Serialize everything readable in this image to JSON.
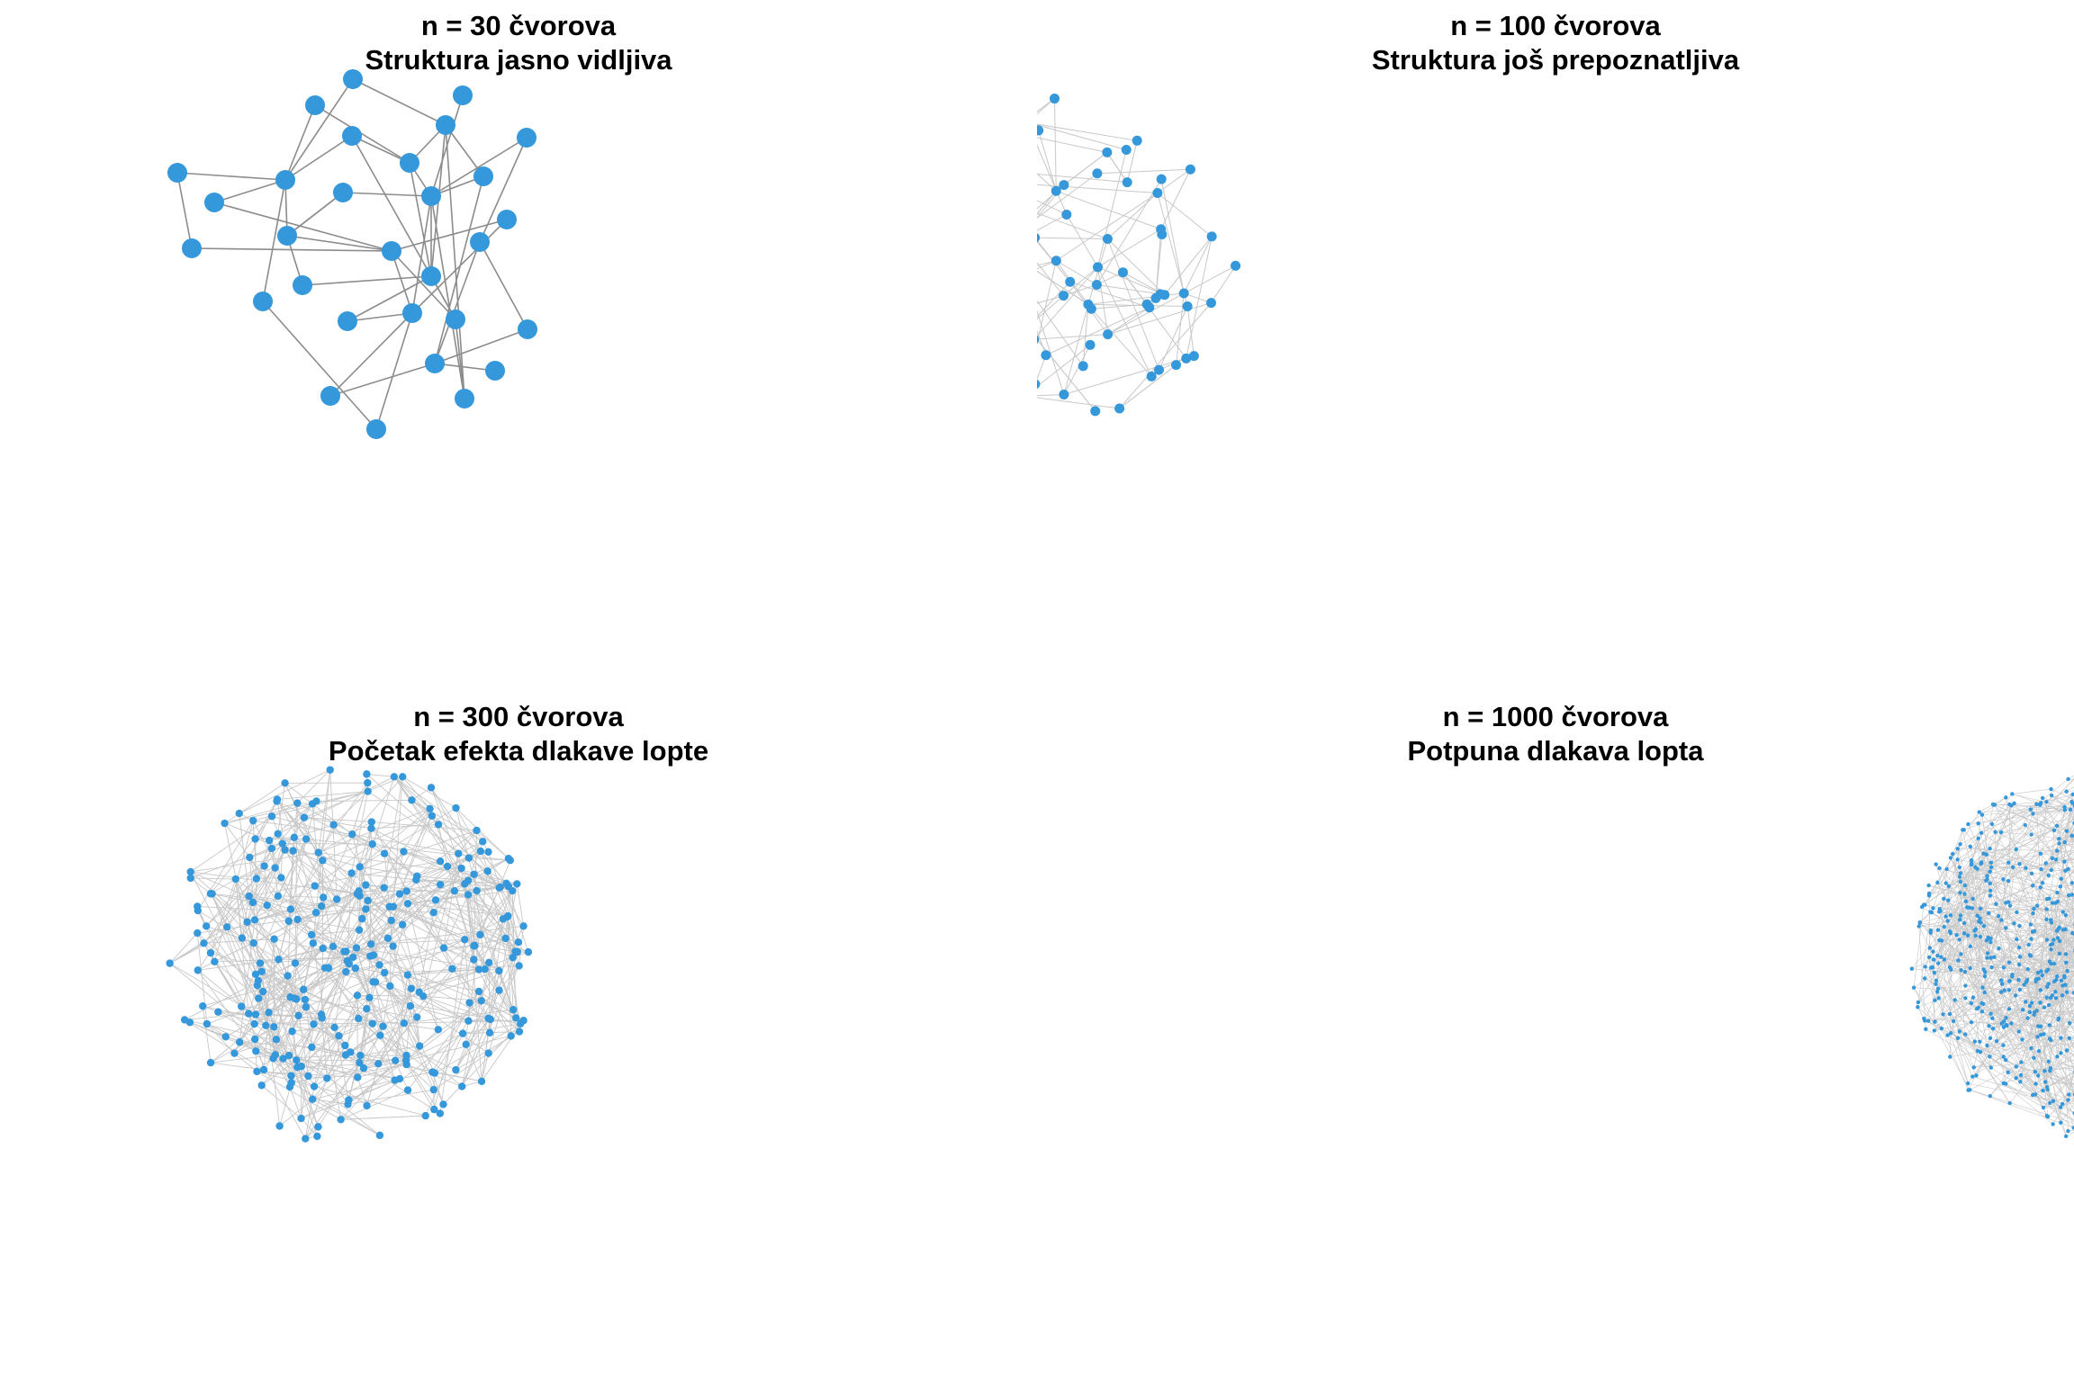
{
  "panels": [
    {
      "id": "n30",
      "title": "n = 30 čvorova",
      "subtitle": "Struktura jasno vidljiva"
    },
    {
      "id": "n100",
      "title": "n = 100 čvorova",
      "subtitle": "Struktura još prepoznatljiva"
    },
    {
      "id": "n300",
      "title": "n = 300 čvorova",
      "subtitle": "Početak efekta dlakave lopte"
    },
    {
      "id": "n1000",
      "title": "n = 1000 čvorova",
      "subtitle": "Potpuna dlakava lopta"
    }
  ],
  "colors": {
    "node": "#3498db",
    "edge_dark": "#8c8c8c",
    "edge_light": "#c8c8c8"
  },
  "network_sizes": [
    30,
    100,
    300,
    1000
  ]
}
